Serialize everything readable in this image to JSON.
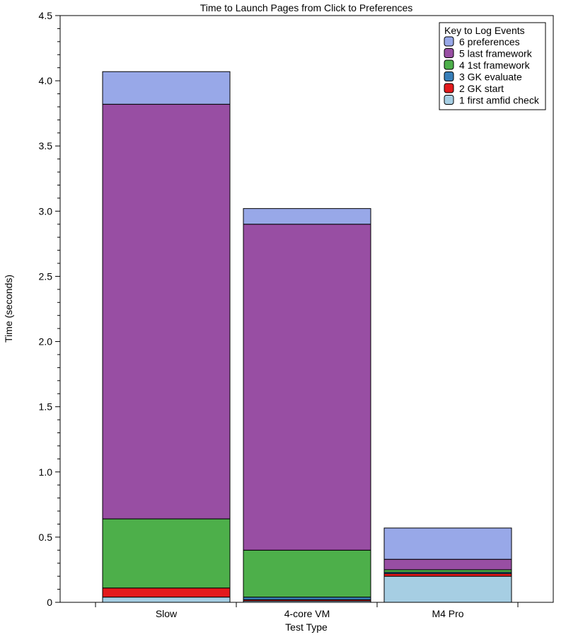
{
  "chart_data": {
    "type": "bar",
    "stacked": true,
    "title": "Time to Launch Pages from Click to Preferences",
    "xlabel": "Test Type",
    "ylabel": "Time (seconds)",
    "ylim": [
      0,
      4.5
    ],
    "yticks": [
      "0",
      "0.5",
      "1.0",
      "1.5",
      "2.0",
      "2.5",
      "3.0",
      "3.5",
      "4.0",
      "4.5"
    ],
    "categories": [
      "Slow",
      "4-core VM",
      "M4 Pro"
    ],
    "legend": {
      "title": "Key to Log Events",
      "placement": "top-right"
    },
    "series": [
      {
        "name": "1 first amfid check",
        "color": "#a6cee3",
        "values": [
          0.04,
          0.01,
          0.2
        ]
      },
      {
        "name": "2 GK start",
        "color": "#e31a1c",
        "values": [
          0.07,
          0.01,
          0.02
        ]
      },
      {
        "name": "3 GK evaluate",
        "color": "#377eb8",
        "values": [
          0.0,
          0.02,
          0.01
        ]
      },
      {
        "name": "4 1st framework",
        "color": "#4daf4a",
        "values": [
          0.53,
          0.36,
          0.02
        ]
      },
      {
        "name": "5 last framework",
        "color": "#984ea3",
        "values": [
          3.18,
          2.5,
          0.08
        ]
      },
      {
        "name": "6 preferences",
        "color": "#98a8e8",
        "values": [
          0.25,
          0.12,
          0.24
        ]
      }
    ],
    "grid": false
  }
}
